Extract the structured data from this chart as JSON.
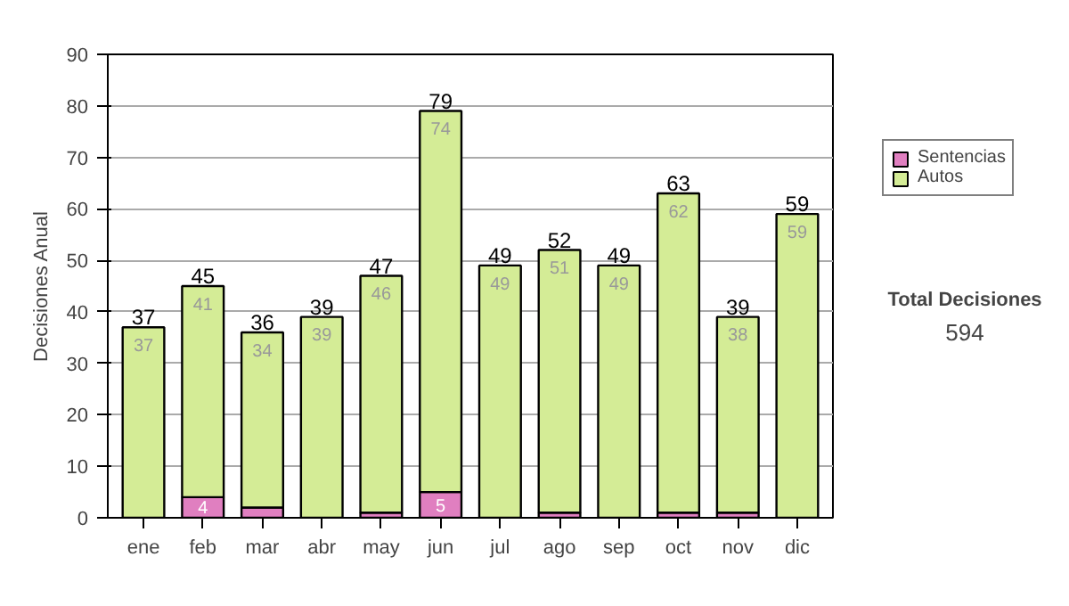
{
  "chart_data": {
    "type": "bar",
    "stacked": true,
    "ylabel": "Decisiones Anual",
    "categories": [
      "ene",
      "feb",
      "mar",
      "abr",
      "may",
      "jun",
      "jul",
      "ago",
      "sep",
      "oct",
      "nov",
      "dic"
    ],
    "series": [
      {
        "name": "Sentencias",
        "color": "#e07fc0",
        "values": [
          0,
          4,
          2,
          0,
          1,
          5,
          0,
          1,
          0,
          1,
          1,
          0
        ],
        "value_labels": [
          null,
          "4",
          null,
          null,
          null,
          "5",
          null,
          null,
          null,
          null,
          null,
          null
        ]
      },
      {
        "name": "Autos",
        "color": "#d4ec96",
        "values": [
          37,
          41,
          34,
          39,
          46,
          74,
          49,
          51,
          49,
          62,
          38,
          59
        ],
        "value_labels": [
          "37",
          "41",
          "34",
          "39",
          "46",
          "74",
          "49",
          "51",
          "49",
          "62",
          "38",
          "59"
        ]
      }
    ],
    "totals": [
      "37",
      "45",
      "36",
      "39",
      "47",
      "79",
      "49",
      "52",
      "49",
      "63",
      "39",
      "59"
    ],
    "ylim": [
      0,
      90
    ],
    "yticks": [
      0,
      10,
      20,
      30,
      40,
      50,
      60,
      70,
      80,
      90
    ],
    "grid": "y",
    "legend": "right",
    "annotations": [
      "Total Decisiones",
      "594"
    ]
  }
}
